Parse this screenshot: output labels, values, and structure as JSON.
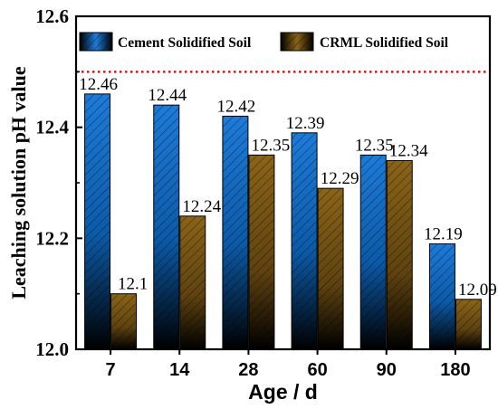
{
  "chart_data": {
    "type": "bar",
    "categories": [
      "7",
      "14",
      "28",
      "60",
      "90",
      "180"
    ],
    "series": [
      {
        "name": "Cement Solidified Soil",
        "values": [
          12.46,
          12.44,
          12.42,
          12.39,
          12.35,
          12.19
        ],
        "labels": [
          "12.46",
          "12.44",
          "12.42",
          "12.39",
          "12.35",
          "12.19"
        ],
        "color_top": "#1e7bd8",
        "color_bottom": "#000000"
      },
      {
        "name": "CRML Solidified Soil",
        "values": [
          12.1,
          12.24,
          12.35,
          12.29,
          12.34,
          12.09
        ],
        "labels": [
          "12.1",
          "12.24",
          "12.35",
          "12.29",
          "12.34",
          "12.09"
        ],
        "color_top": "#8a6418",
        "color_bottom": "#000000"
      }
    ],
    "xlabel": "Age / d",
    "ylabel": "Leaching solution pH value",
    "ylim": [
      12.0,
      12.6
    ],
    "yticks": [
      "12.0",
      "12.2",
      "12.4",
      "12.6"
    ],
    "ytick_values": [
      12.0,
      12.2,
      12.4,
      12.6
    ],
    "minor_ytick_values": [
      12.1,
      12.3,
      12.5
    ],
    "reference_line": {
      "value": 12.5,
      "style": "dotted",
      "color": "#e01010"
    },
    "legend_position": "top",
    "grid": false
  }
}
